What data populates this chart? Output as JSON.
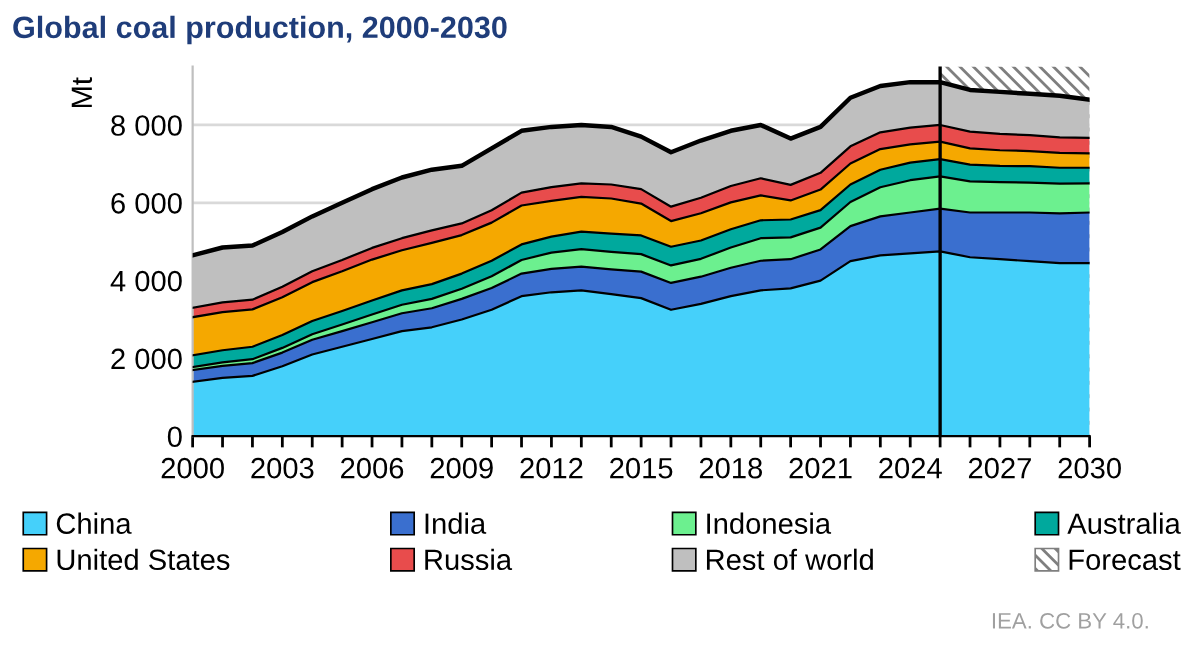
{
  "chart_data": {
    "type": "area",
    "stacked": true,
    "title": "Global coal production, 2000-2030",
    "ylabel": "Mt",
    "x": [
      2000,
      2001,
      2002,
      2003,
      2004,
      2005,
      2006,
      2007,
      2008,
      2009,
      2010,
      2011,
      2012,
      2013,
      2014,
      2015,
      2016,
      2017,
      2018,
      2019,
      2020,
      2021,
      2022,
      2023,
      2024,
      2025,
      2026,
      2027,
      2028,
      2029,
      2030
    ],
    "series": [
      {
        "name": "China",
        "color": "#45d0fa",
        "values": [
          1400,
          1500,
          1550,
          1800,
          2100,
          2300,
          2500,
          2700,
          2800,
          3000,
          3250,
          3600,
          3700,
          3750,
          3650,
          3550,
          3250,
          3400,
          3600,
          3750,
          3800,
          4000,
          4500,
          4650,
          4700,
          4750,
          4600,
          4550,
          4500,
          4450,
          4450
        ]
      },
      {
        "name": "India",
        "color": "#3a6fcf",
        "values": [
          300,
          310,
          330,
          350,
          380,
          400,
          430,
          460,
          490,
          530,
          560,
          580,
          600,
          610,
          640,
          680,
          690,
          700,
          730,
          760,
          750,
          800,
          900,
          1000,
          1050,
          1100,
          1150,
          1200,
          1250,
          1280,
          1300
        ]
      },
      {
        "name": "Indonesia",
        "color": "#6cf08f",
        "values": [
          80,
          90,
          100,
          120,
          140,
          170,
          200,
          220,
          240,
          260,
          300,
          350,
          420,
          450,
          450,
          450,
          450,
          460,
          520,
          580,
          560,
          560,
          620,
          750,
          830,
          830,
          800,
          780,
          770,
          760,
          750
        ]
      },
      {
        "name": "Australia",
        "color": "#00a99d",
        "values": [
          300,
          310,
          320,
          330,
          340,
          350,
          360,
          370,
          380,
          390,
          400,
          400,
          410,
          450,
          470,
          480,
          480,
          470,
          470,
          460,
          460,
          450,
          450,
          450,
          450,
          440,
          430,
          420,
          420,
          410,
          400
        ]
      },
      {
        "name": "United States",
        "color": "#f5a800",
        "values": [
          980,
          980,
          960,
          970,
          1000,
          1020,
          1050,
          1030,
          1060,
          990,
          980,
          1000,
          920,
          890,
          900,
          820,
          660,
          700,
          690,
          640,
          490,
          530,
          540,
          530,
          470,
          450,
          420,
          400,
          390,
          380,
          370
        ]
      },
      {
        "name": "Russia",
        "color": "#e84c4c",
        "values": [
          240,
          250,
          250,
          270,
          280,
          290,
          300,
          310,
          320,
          300,
          320,
          330,
          350,
          350,
          360,
          370,
          370,
          400,
          420,
          440,
          400,
          430,
          440,
          430,
          430,
          430,
          430,
          420,
          410,
          400,
          400
        ]
      },
      {
        "name": "Rest of world",
        "color": "#bfbfbf",
        "values": [
          1350,
          1410,
          1390,
          1410,
          1410,
          1470,
          1510,
          1560,
          1560,
          1480,
          1590,
          1590,
          1550,
          1500,
          1480,
          1350,
          1400,
          1470,
          1420,
          1370,
          1190,
          1180,
          1250,
          1190,
          1170,
          1100,
          1070,
          1080,
          1060,
          1070,
          980
        ]
      }
    ],
    "bands": [
      {
        "axis": "x",
        "from": 2025,
        "to": 2030,
        "label": "Forecast",
        "color": "#7f7f7f"
      }
    ],
    "ref_lines": [
      {
        "axis": "x",
        "value": 2025,
        "label": null
      }
    ],
    "xlim": [
      2000,
      2030
    ],
    "xticks": [
      2000,
      {
        "value": 2001,
        "label": null
      },
      {
        "value": 2002,
        "label": null
      },
      2003,
      {
        "value": 2004,
        "label": null
      },
      {
        "value": 2005,
        "label": null
      },
      2006,
      {
        "value": 2007,
        "label": null
      },
      {
        "value": 2008,
        "label": null
      },
      2009,
      {
        "value": 2010,
        "label": null
      },
      {
        "value": 2011,
        "label": null
      },
      2012,
      {
        "value": 2013,
        "label": null
      },
      {
        "value": 2014,
        "label": null
      },
      2015,
      {
        "value": 2016,
        "label": null
      },
      {
        "value": 2017,
        "label": null
      },
      2018,
      {
        "value": 2019,
        "label": null
      },
      {
        "value": 2020,
        "label": null
      },
      2021,
      {
        "value": 2022,
        "label": null
      },
      {
        "value": 2023,
        "label": null
      },
      2024,
      {
        "value": 2025,
        "label": null
      },
      {
        "value": 2026,
        "label": null
      },
      2027,
      {
        "value": 2028,
        "label": null
      },
      {
        "value": 2029,
        "label": null
      },
      2030
    ],
    "ylim": [
      0,
      9500
    ],
    "yticks": [
      0,
      {
        "value": 2000,
        "label": "2 000"
      },
      {
        "value": 4000,
        "label": "4 000"
      },
      {
        "value": 6000,
        "label": "6 000"
      },
      {
        "value": 8000,
        "label": "8 000"
      }
    ],
    "grid": "y",
    "legend": "bottom",
    "annotations": [
      "IEA. CC BY 4.0."
    ]
  }
}
